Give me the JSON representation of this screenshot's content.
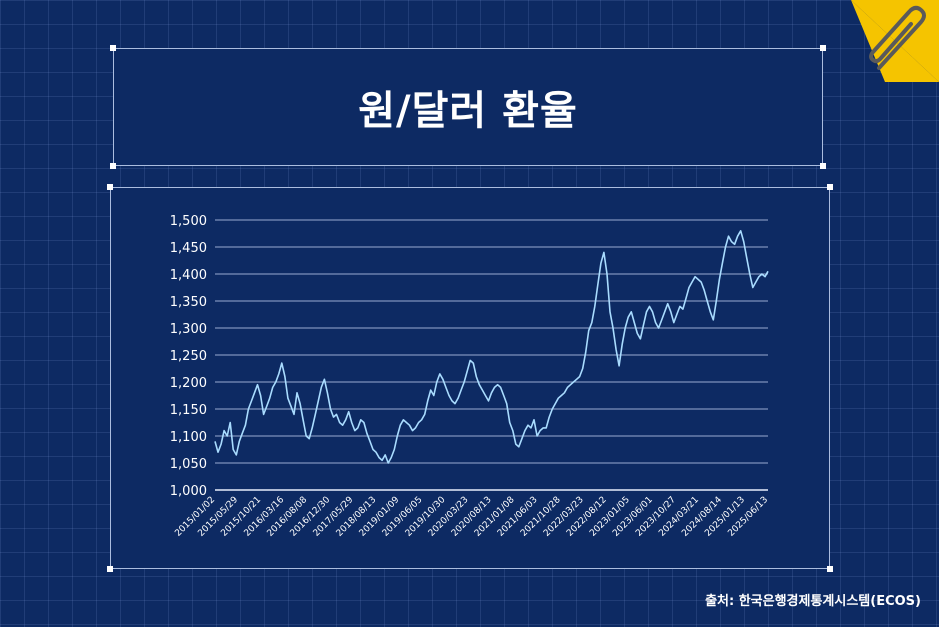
{
  "title": "원/달러 환율",
  "source": "출처: 한국은행경제통계시스템(ECOS)",
  "colors": {
    "background": "#0d2a63",
    "line": "#a9dcff",
    "accent": "#f5c400"
  },
  "icons": {
    "corner": "paperclip-icon"
  },
  "chart_data": {
    "type": "line",
    "title": "원/달러 환율",
    "xlabel": "",
    "ylabel": "",
    "ylim": [
      1000,
      1500
    ],
    "yticks": [
      "1,500",
      "1,450",
      "1,400",
      "1,350",
      "1,300",
      "1,250",
      "1,200",
      "1,150",
      "1,100",
      "1,050",
      "1,000"
    ],
    "ytick_values": [
      1500,
      1450,
      1400,
      1350,
      1300,
      1250,
      1200,
      1150,
      1100,
      1050,
      1000
    ],
    "xticks": [
      "2015/01/02",
      "2015/05/29",
      "2015/10/21",
      "2016/03/16",
      "2016/08/08",
      "2016/12/30",
      "2017/05/29",
      "2018/08/13",
      "2019/01/09",
      "2019/06/05",
      "2019/10/30",
      "2020/03/23",
      "2020/08/13",
      "2021/01/08",
      "2021/06/03",
      "2021/10/28",
      "2022/03/23",
      "2022/08/12",
      "2023/01/05",
      "2023/06/01",
      "2023/10/27",
      "2024/03/21",
      "2024/08/14",
      "2025/01/13",
      "2025/06/13"
    ],
    "grid": true,
    "series": [
      {
        "values": [
          1090,
          1070,
          1085,
          1110,
          1100,
          1125,
          1075,
          1065,
          1090,
          1105,
          1120,
          1150,
          1165,
          1180,
          1195,
          1175,
          1140,
          1155,
          1170,
          1190,
          1200,
          1215,
          1235,
          1210,
          1170,
          1155,
          1140,
          1180,
          1160,
          1130,
          1100,
          1095,
          1115,
          1140,
          1165,
          1190,
          1205,
          1180,
          1150,
          1135,
          1140,
          1125,
          1120,
          1130,
          1145,
          1125,
          1110,
          1115,
          1130,
          1125,
          1105,
          1090,
          1075,
          1070,
          1060,
          1055,
          1065,
          1050,
          1060,
          1075,
          1100,
          1120,
          1130,
          1125,
          1120,
          1110,
          1115,
          1125,
          1130,
          1140,
          1165,
          1185,
          1175,
          1200,
          1215,
          1205,
          1190,
          1175,
          1165,
          1160,
          1170,
          1185,
          1200,
          1220,
          1240,
          1235,
          1210,
          1195,
          1185,
          1175,
          1165,
          1180,
          1190,
          1195,
          1190,
          1175,
          1160,
          1125,
          1110,
          1085,
          1080,
          1095,
          1110,
          1120,
          1115,
          1130,
          1100,
          1110,
          1115,
          1115,
          1135,
          1150,
          1160,
          1170,
          1175,
          1180,
          1190,
          1195,
          1200,
          1205,
          1210,
          1225,
          1255,
          1295,
          1310,
          1340,
          1380,
          1420,
          1440,
          1400,
          1330,
          1300,
          1260,
          1230,
          1270,
          1300,
          1320,
          1330,
          1310,
          1290,
          1280,
          1305,
          1330,
          1340,
          1330,
          1310,
          1300,
          1315,
          1330,
          1345,
          1330,
          1310,
          1325,
          1340,
          1335,
          1355,
          1375,
          1385,
          1395,
          1390,
          1385,
          1370,
          1350,
          1330,
          1315,
          1350,
          1390,
          1420,
          1450,
          1470,
          1460,
          1455,
          1470,
          1480,
          1460,
          1430,
          1400,
          1375,
          1385,
          1395,
          1400,
          1395,
          1405
        ]
      }
    ]
  }
}
